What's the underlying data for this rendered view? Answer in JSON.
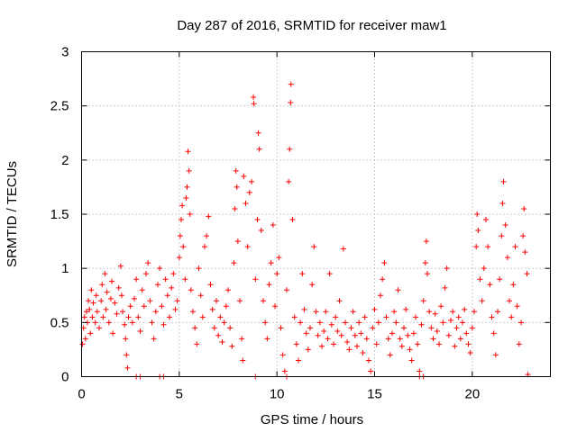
{
  "chart_data": {
    "type": "scatter",
    "title": "Day 287 of 2016, SRMTID for receiver maw1",
    "xlabel": "GPS time / hours",
    "ylabel": "SRMTID / TECUs",
    "xlim": [
      0,
      24
    ],
    "ylim": [
      0,
      3
    ],
    "xticks": [
      0,
      5,
      10,
      15,
      20
    ],
    "yticks": [
      0,
      0.5,
      1,
      1.5,
      2,
      2.5,
      3
    ],
    "x_tick_labels": [
      "0",
      "5",
      "10",
      "15",
      "20"
    ],
    "y_tick_labels": [
      "0",
      "0.5",
      "1",
      "1.5",
      "2",
      "2.5",
      "3"
    ],
    "grid": true,
    "marker": "+",
    "color": "#ff0000",
    "series": [
      {
        "name": "SRMTID",
        "points": [
          [
            0.05,
            0.3
          ],
          [
            0.1,
            0.45
          ],
          [
            0.15,
            0.55
          ],
          [
            0.2,
            0.35
          ],
          [
            0.25,
            0.6
          ],
          [
            0.3,
            0.5
          ],
          [
            0.35,
            0.7
          ],
          [
            0.4,
            0.62
          ],
          [
            0.45,
            0.4
          ],
          [
            0.5,
            0.8
          ],
          [
            0.55,
            0.55
          ],
          [
            0.6,
            0.68
          ],
          [
            0.7,
            0.5
          ],
          [
            0.75,
            0.75
          ],
          [
            0.8,
            0.6
          ],
          [
            0.9,
            0.45
          ],
          [
            1.0,
            0.7
          ],
          [
            1.05,
            0.85
          ],
          [
            1.1,
            0.55
          ],
          [
            1.2,
            0.95
          ],
          [
            1.25,
            0.62
          ],
          [
            1.3,
            0.78
          ],
          [
            1.4,
            0.5
          ],
          [
            1.5,
            0.72
          ],
          [
            1.55,
            0.88
          ],
          [
            1.6,
            0.4
          ],
          [
            1.7,
            0.68
          ],
          [
            1.8,
            0.58
          ],
          [
            1.9,
            0.82
          ],
          [
            2.0,
            1.02
          ],
          [
            2.05,
            0.75
          ],
          [
            2.1,
            0.6
          ],
          [
            2.2,
            0.48
          ],
          [
            2.25,
            0.35
          ],
          [
            2.3,
            0.2
          ],
          [
            2.35,
            0.08
          ],
          [
            2.4,
            0.55
          ],
          [
            2.5,
            0.65
          ],
          [
            2.6,
            0.5
          ],
          [
            2.7,
            0.72
          ],
          [
            2.8,
            0.9
          ],
          [
            2.9,
            0.55
          ],
          [
            3.0,
            0.42
          ],
          [
            3.1,
            0.8
          ],
          [
            3.2,
            0.65
          ],
          [
            3.3,
            0.95
          ],
          [
            3.4,
            1.05
          ],
          [
            3.5,
            0.7
          ],
          [
            3.6,
            0.5
          ],
          [
            3.7,
            0.35
          ],
          [
            3.8,
            0.6
          ],
          [
            3.9,
            0.85
          ],
          [
            4.0,
            1.0
          ],
          [
            4.1,
            0.65
          ],
          [
            4.2,
            0.48
          ],
          [
            4.3,
            0.9
          ],
          [
            4.4,
            0.75
          ],
          [
            4.5,
            0.55
          ],
          [
            4.6,
            0.82
          ],
          [
            4.7,
            0.95
          ],
          [
            4.8,
            0.62
          ],
          [
            4.9,
            0.7
          ],
          [
            5.0,
            1.1
          ],
          [
            5.05,
            1.3
          ],
          [
            5.1,
            1.45
          ],
          [
            5.15,
            1.58
          ],
          [
            5.2,
            1.2
          ],
          [
            5.3,
            0.9
          ],
          [
            5.35,
            1.65
          ],
          [
            5.4,
            1.75
          ],
          [
            5.45,
            2.08
          ],
          [
            5.5,
            1.9
          ],
          [
            5.55,
            1.5
          ],
          [
            5.6,
            0.8
          ],
          [
            5.7,
            0.6
          ],
          [
            5.8,
            0.45
          ],
          [
            5.9,
            0.3
          ],
          [
            6.0,
            1.0
          ],
          [
            6.1,
            0.75
          ],
          [
            6.2,
            0.55
          ],
          [
            6.3,
            1.2
          ],
          [
            6.4,
            1.3
          ],
          [
            6.5,
            1.48
          ],
          [
            6.6,
            0.85
          ],
          [
            6.7,
            0.62
          ],
          [
            6.8,
            0.45
          ],
          [
            6.9,
            0.7
          ],
          [
            7.0,
            0.38
          ],
          [
            7.1,
            0.55
          ],
          [
            7.2,
            0.32
          ],
          [
            7.3,
            0.5
          ],
          [
            7.4,
            0.65
          ],
          [
            7.5,
            0.8
          ],
          [
            7.6,
            0.45
          ],
          [
            7.7,
            0.28
          ],
          [
            7.8,
            1.05
          ],
          [
            7.85,
            1.55
          ],
          [
            7.9,
            1.9
          ],
          [
            7.95,
            1.75
          ],
          [
            8.0,
            1.25
          ],
          [
            8.1,
            0.7
          ],
          [
            8.2,
            0.35
          ],
          [
            8.25,
            0.15
          ],
          [
            8.3,
            1.85
          ],
          [
            8.4,
            1.6
          ],
          [
            8.5,
            1.2
          ],
          [
            8.6,
            1.7
          ],
          [
            8.7,
            1.8
          ],
          [
            8.8,
            2.58
          ],
          [
            8.82,
            2.52
          ],
          [
            8.9,
            0.9
          ],
          [
            9.0,
            1.45
          ],
          [
            9.05,
            2.25
          ],
          [
            9.1,
            2.1
          ],
          [
            9.2,
            1.35
          ],
          [
            9.3,
            0.7
          ],
          [
            9.4,
            0.5
          ],
          [
            9.5,
            0.35
          ],
          [
            9.6,
            0.85
          ],
          [
            9.7,
            1.05
          ],
          [
            9.8,
            1.4
          ],
          [
            9.9,
            0.65
          ],
          [
            10.0,
            0.95
          ],
          [
            10.1,
            1.1
          ],
          [
            10.2,
            0.45
          ],
          [
            10.3,
            0.2
          ],
          [
            10.4,
            0.05
          ],
          [
            10.5,
            0.8
          ],
          [
            10.6,
            1.8
          ],
          [
            10.65,
            2.1
          ],
          [
            10.7,
            2.53
          ],
          [
            10.72,
            2.7
          ],
          [
            10.8,
            1.45
          ],
          [
            10.9,
            0.55
          ],
          [
            11.0,
            0.3
          ],
          [
            11.1,
            0.15
          ],
          [
            11.2,
            0.5
          ],
          [
            11.3,
            0.95
          ],
          [
            11.4,
            0.62
          ],
          [
            11.5,
            0.4
          ],
          [
            11.6,
            0.25
          ],
          [
            11.7,
            0.45
          ],
          [
            11.8,
            0.85
          ],
          [
            11.9,
            1.2
          ],
          [
            12.0,
            0.6
          ],
          [
            12.1,
            0.38
          ],
          [
            12.2,
            0.5
          ],
          [
            12.3,
            0.28
          ],
          [
            12.4,
            0.42
          ],
          [
            12.5,
            0.6
          ],
          [
            12.6,
            0.35
          ],
          [
            12.7,
            0.95
          ],
          [
            12.8,
            0.48
          ],
          [
            12.9,
            0.3
          ],
          [
            13.0,
            0.55
          ],
          [
            13.1,
            0.42
          ],
          [
            13.2,
            0.7
          ],
          [
            13.3,
            0.38
          ],
          [
            13.4,
            1.18
          ],
          [
            13.5,
            0.5
          ],
          [
            13.6,
            0.32
          ],
          [
            13.7,
            0.25
          ],
          [
            13.8,
            0.45
          ],
          [
            13.9,
            0.6
          ],
          [
            14.0,
            0.38
          ],
          [
            14.1,
            0.28
          ],
          [
            14.2,
            0.5
          ],
          [
            14.3,
            0.4
          ],
          [
            14.4,
            0.22
          ],
          [
            14.5,
            0.55
          ],
          [
            14.6,
            0.35
          ],
          [
            14.7,
            0.15
          ],
          [
            14.8,
            0.05
          ],
          [
            14.9,
            0.45
          ],
          [
            15.0,
            0.62
          ],
          [
            15.1,
            0.3
          ],
          [
            15.2,
            0.5
          ],
          [
            15.3,
            0.75
          ],
          [
            15.4,
            0.9
          ],
          [
            15.5,
            1.05
          ],
          [
            15.6,
            0.55
          ],
          [
            15.7,
            0.35
          ],
          [
            15.8,
            0.2
          ],
          [
            15.9,
            0.4
          ],
          [
            16.0,
            0.6
          ],
          [
            16.1,
            0.5
          ],
          [
            16.2,
            0.8
          ],
          [
            16.3,
            0.35
          ],
          [
            16.4,
            0.28
          ],
          [
            16.5,
            0.45
          ],
          [
            16.6,
            0.62
          ],
          [
            16.7,
            0.38
          ],
          [
            16.8,
            0.25
          ],
          [
            16.9,
            0.15
          ],
          [
            17.0,
            0.4
          ],
          [
            17.1,
            0.55
          ],
          [
            17.2,
            0.3
          ],
          [
            17.3,
            0.05
          ],
          [
            17.4,
            0.48
          ],
          [
            17.5,
            0.7
          ],
          [
            17.6,
            1.05
          ],
          [
            17.65,
            1.25
          ],
          [
            17.7,
            0.95
          ],
          [
            17.8,
            0.6
          ],
          [
            17.9,
            0.45
          ],
          [
            18.0,
            0.35
          ],
          [
            18.1,
            0.58
          ],
          [
            18.2,
            0.42
          ],
          [
            18.3,
            0.3
          ],
          [
            18.4,
            0.65
          ],
          [
            18.5,
            0.5
          ],
          [
            18.6,
            0.82
          ],
          [
            18.7,
            1.0
          ],
          [
            18.8,
            0.38
          ],
          [
            18.9,
            0.52
          ],
          [
            19.0,
            0.6
          ],
          [
            19.1,
            0.28
          ],
          [
            19.2,
            0.45
          ],
          [
            19.3,
            0.55
          ],
          [
            19.4,
            0.35
          ],
          [
            19.5,
            0.5
          ],
          [
            19.6,
            0.62
          ],
          [
            19.7,
            0.4
          ],
          [
            19.8,
            0.3
          ],
          [
            19.9,
            0.22
          ],
          [
            20.0,
            0.45
          ],
          [
            20.1,
            0.6
          ],
          [
            20.2,
            1.2
          ],
          [
            20.25,
            1.5
          ],
          [
            20.3,
            1.35
          ],
          [
            20.4,
            0.9
          ],
          [
            20.5,
            0.7
          ],
          [
            20.6,
            1.0
          ],
          [
            20.7,
            1.45
          ],
          [
            20.8,
            1.2
          ],
          [
            20.9,
            0.85
          ],
          [
            21.0,
            0.55
          ],
          [
            21.1,
            0.4
          ],
          [
            21.2,
            0.2
          ],
          [
            21.3,
            0.6
          ],
          [
            21.4,
            0.9
          ],
          [
            21.5,
            1.3
          ],
          [
            21.55,
            1.6
          ],
          [
            21.6,
            1.8
          ],
          [
            21.7,
            1.4
          ],
          [
            21.8,
            1.1
          ],
          [
            21.9,
            0.7
          ],
          [
            22.0,
            0.55
          ],
          [
            22.1,
            0.85
          ],
          [
            22.2,
            1.2
          ],
          [
            22.3,
            0.65
          ],
          [
            22.4,
            0.3
          ],
          [
            22.5,
            0.5
          ],
          [
            22.6,
            1.3
          ],
          [
            22.65,
            1.55
          ],
          [
            22.7,
            1.15
          ],
          [
            22.8,
            0.95
          ],
          [
            22.85,
            0.02
          ],
          [
            2.8,
            0.0
          ],
          [
            3.0,
            0.0
          ],
          [
            4.0,
            0.0
          ],
          [
            4.2,
            0.0
          ],
          [
            17.3,
            0.0
          ],
          [
            17.5,
            0.0
          ],
          [
            8.9,
            0.0
          ],
          [
            10.5,
            0.0
          ]
        ]
      }
    ]
  }
}
